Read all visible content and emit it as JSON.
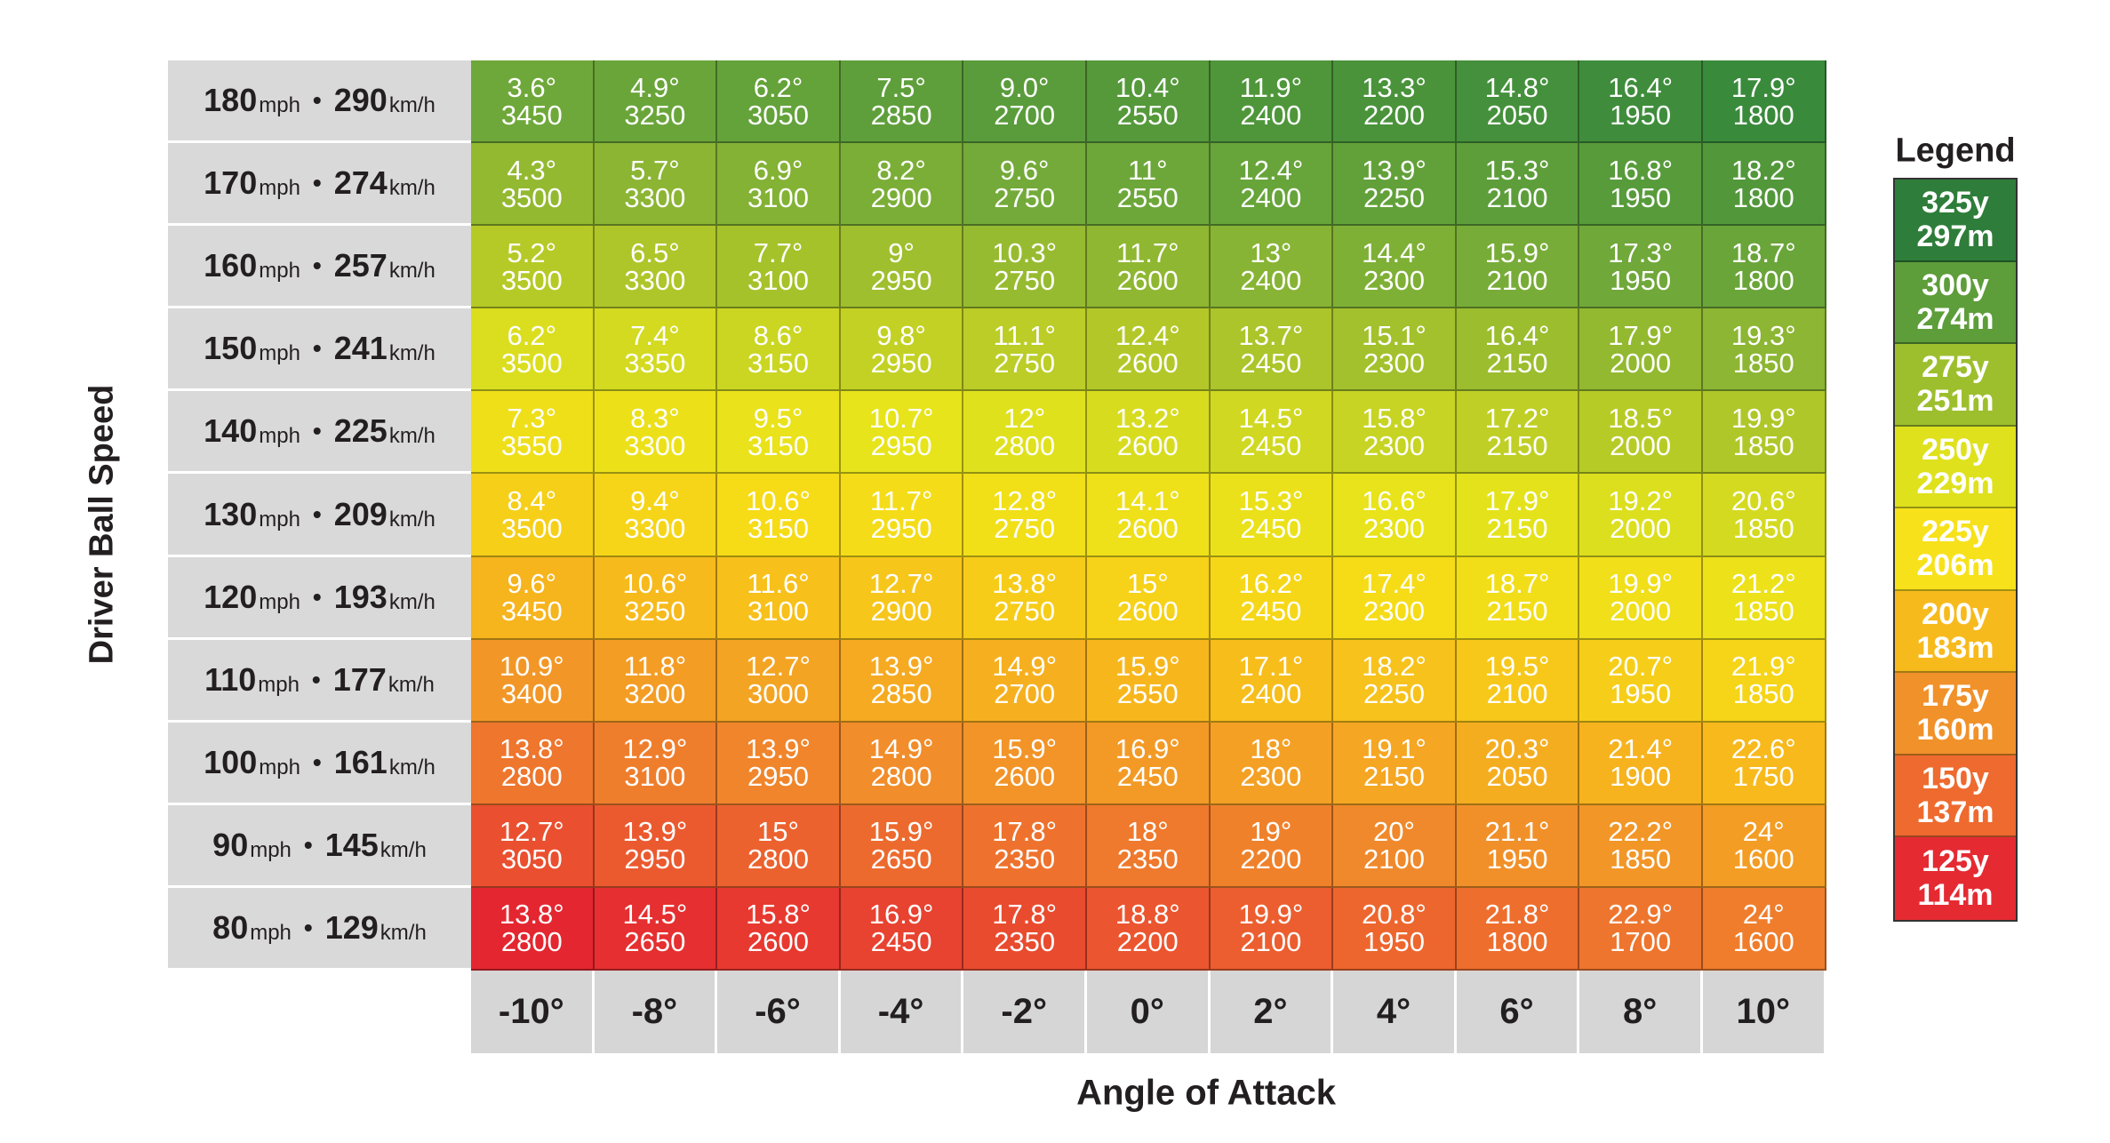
{
  "chart_data": {
    "type": "table",
    "ylabel": "Driver Ball Speed",
    "xlabel": "Angle of Attack",
    "legend_title": "Legend",
    "columns": [
      "-10°",
      "-8°",
      "-6°",
      "-4°",
      "-2°",
      "0°",
      "2°",
      "4°",
      "6°",
      "8°",
      "10°"
    ],
    "rows": [
      {
        "mph": "180",
        "kmh": "290",
        "cells": [
          [
            "3.6°",
            "3450"
          ],
          [
            "4.9°",
            "3250"
          ],
          [
            "6.2°",
            "3050"
          ],
          [
            "7.5°",
            "2850"
          ],
          [
            "9.0°",
            "2700"
          ],
          [
            "10.4°",
            "2550"
          ],
          [
            "11.9°",
            "2400"
          ],
          [
            "13.3°",
            "2200"
          ],
          [
            "14.8°",
            "2050"
          ],
          [
            "16.4°",
            "1950"
          ],
          [
            "17.9°",
            "1800"
          ]
        ]
      },
      {
        "mph": "170",
        "kmh": "274",
        "cells": [
          [
            "4.3°",
            "3500"
          ],
          [
            "5.7°",
            "3300"
          ],
          [
            "6.9°",
            "3100"
          ],
          [
            "8.2°",
            "2900"
          ],
          [
            "9.6°",
            "2750"
          ],
          [
            "11°",
            "2550"
          ],
          [
            "12.4°",
            "2400"
          ],
          [
            "13.9°",
            "2250"
          ],
          [
            "15.3°",
            "2100"
          ],
          [
            "16.8°",
            "1950"
          ],
          [
            "18.2°",
            "1800"
          ]
        ]
      },
      {
        "mph": "160",
        "kmh": "257",
        "cells": [
          [
            "5.2°",
            "3500"
          ],
          [
            "6.5°",
            "3300"
          ],
          [
            "7.7°",
            "3100"
          ],
          [
            "9°",
            "2950"
          ],
          [
            "10.3°",
            "2750"
          ],
          [
            "11.7°",
            "2600"
          ],
          [
            "13°",
            "2400"
          ],
          [
            "14.4°",
            "2300"
          ],
          [
            "15.9°",
            "2100"
          ],
          [
            "17.3°",
            "1950"
          ],
          [
            "18.7°",
            "1800"
          ]
        ]
      },
      {
        "mph": "150",
        "kmh": "241",
        "cells": [
          [
            "6.2°",
            "3500"
          ],
          [
            "7.4°",
            "3350"
          ],
          [
            "8.6°",
            "3150"
          ],
          [
            "9.8°",
            "2950"
          ],
          [
            "11.1°",
            "2750"
          ],
          [
            "12.4°",
            "2600"
          ],
          [
            "13.7°",
            "2450"
          ],
          [
            "15.1°",
            "2300"
          ],
          [
            "16.4°",
            "2150"
          ],
          [
            "17.9°",
            "2000"
          ],
          [
            "19.3°",
            "1850"
          ]
        ]
      },
      {
        "mph": "140",
        "kmh": "225",
        "cells": [
          [
            "7.3°",
            "3550"
          ],
          [
            "8.3°",
            "3300"
          ],
          [
            "9.5°",
            "3150"
          ],
          [
            "10.7°",
            "2950"
          ],
          [
            "12°",
            "2800"
          ],
          [
            "13.2°",
            "2600"
          ],
          [
            "14.5°",
            "2450"
          ],
          [
            "15.8°",
            "2300"
          ],
          [
            "17.2°",
            "2150"
          ],
          [
            "18.5°",
            "2000"
          ],
          [
            "19.9°",
            "1850"
          ]
        ]
      },
      {
        "mph": "130",
        "kmh": "209",
        "cells": [
          [
            "8.4°",
            "3500"
          ],
          [
            "9.4°",
            "3300"
          ],
          [
            "10.6°",
            "3150"
          ],
          [
            "11.7°",
            "2950"
          ],
          [
            "12.8°",
            "2750"
          ],
          [
            "14.1°",
            "2600"
          ],
          [
            "15.3°",
            "2450"
          ],
          [
            "16.6°",
            "2300"
          ],
          [
            "17.9°",
            "2150"
          ],
          [
            "19.2°",
            "2000"
          ],
          [
            "20.6°",
            "1850"
          ]
        ]
      },
      {
        "mph": "120",
        "kmh": "193",
        "cells": [
          [
            "9.6°",
            "3450"
          ],
          [
            "10.6°",
            "3250"
          ],
          [
            "11.6°",
            "3100"
          ],
          [
            "12.7°",
            "2900"
          ],
          [
            "13.8°",
            "2750"
          ],
          [
            "15°",
            "2600"
          ],
          [
            "16.2°",
            "2450"
          ],
          [
            "17.4°",
            "2300"
          ],
          [
            "18.7°",
            "2150"
          ],
          [
            "19.9°",
            "2000"
          ],
          [
            "21.2°",
            "1850"
          ]
        ]
      },
      {
        "mph": "110",
        "kmh": "177",
        "cells": [
          [
            "10.9°",
            "3400"
          ],
          [
            "11.8°",
            "3200"
          ],
          [
            "12.7°",
            "3000"
          ],
          [
            "13.9°",
            "2850"
          ],
          [
            "14.9°",
            "2700"
          ],
          [
            "15.9°",
            "2550"
          ],
          [
            "17.1°",
            "2400"
          ],
          [
            "18.2°",
            "2250"
          ],
          [
            "19.5°",
            "2100"
          ],
          [
            "20.7°",
            "1950"
          ],
          [
            "21.9°",
            "1850"
          ]
        ]
      },
      {
        "mph": "100",
        "kmh": "161",
        "cells": [
          [
            "13.8°",
            "2800"
          ],
          [
            "12.9°",
            "3100"
          ],
          [
            "13.9°",
            "2950"
          ],
          [
            "14.9°",
            "2800"
          ],
          [
            "15.9°",
            "2600"
          ],
          [
            "16.9°",
            "2450"
          ],
          [
            "18°",
            "2300"
          ],
          [
            "19.1°",
            "2150"
          ],
          [
            "20.3°",
            "2050"
          ],
          [
            "21.4°",
            "1900"
          ],
          [
            "22.6°",
            "1750"
          ]
        ]
      },
      {
        "mph": "90",
        "kmh": "145",
        "cells": [
          [
            "12.7°",
            "3050"
          ],
          [
            "13.9°",
            "2950"
          ],
          [
            "15°",
            "2800"
          ],
          [
            "15.9°",
            "2650"
          ],
          [
            "17.8°",
            "2350"
          ],
          [
            "18°",
            "2350"
          ],
          [
            "19°",
            "2200"
          ],
          [
            "20°",
            "2100"
          ],
          [
            "21.1°",
            "1950"
          ],
          [
            "22.2°",
            "1850"
          ],
          [
            "24°",
            "1600"
          ]
        ]
      },
      {
        "mph": "80",
        "kmh": "129",
        "cells": [
          [
            "13.8°",
            "2800"
          ],
          [
            "14.5°",
            "2650"
          ],
          [
            "15.8°",
            "2600"
          ],
          [
            "16.9°",
            "2450"
          ],
          [
            "17.8°",
            "2350"
          ],
          [
            "18.8°",
            "2200"
          ],
          [
            "19.9°",
            "2100"
          ],
          [
            "20.8°",
            "1950"
          ],
          [
            "21.8°",
            "1800"
          ],
          [
            "22.9°",
            "1700"
          ],
          [
            "24°",
            "1600"
          ]
        ]
      }
    ],
    "units": {
      "mph": "mph",
      "kmh": "km/h"
    },
    "legend": [
      {
        "yards": "325y",
        "meters": "297m",
        "color": "#2e7d3a"
      },
      {
        "yards": "300y",
        "meters": "274m",
        "color": "#5d9d3a"
      },
      {
        "yards": "275y",
        "meters": "251m",
        "color": "#9dbf2d"
      },
      {
        "yards": "250y",
        "meters": "229m",
        "color": "#dfe11d"
      },
      {
        "yards": "225y",
        "meters": "206m",
        "color": "#f7e11a"
      },
      {
        "yards": "200y",
        "meters": "183m",
        "color": "#f7ba1d"
      },
      {
        "yards": "175y",
        "meters": "160m",
        "color": "#f1912a"
      },
      {
        "yards": "150y",
        "meters": "137m",
        "color": "#ee6a2e"
      },
      {
        "yards": "125y",
        "meters": "114m",
        "color": "#e52a32"
      }
    ],
    "colors": {
      "top": "#3f8a3c",
      "mid": "#f3e11b",
      "bottom": "#e52a2e"
    }
  }
}
